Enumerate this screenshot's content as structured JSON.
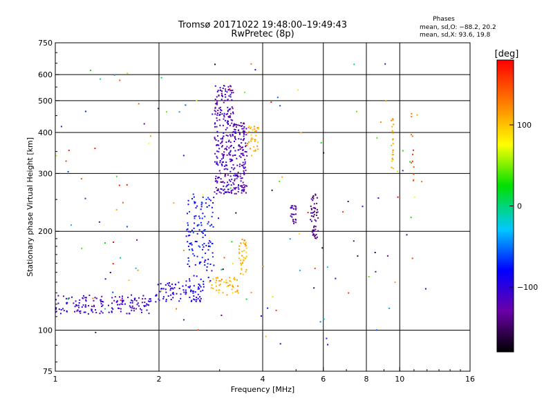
{
  "chart_data": {
    "type": "scatter",
    "title": "Tromsø 20171022 19:48:00–19:49:43",
    "subtitle": "RwPretec (8p)",
    "xlabel": "Frequency [MHz]",
    "ylabel": "Stationary phase Virtual Height [km]",
    "x_scale": "log",
    "y_scale": "log",
    "xlim": [
      1,
      16
    ],
    "ylim": [
      75,
      750
    ],
    "grid": true,
    "xticks": [
      1,
      2,
      4,
      6,
      8,
      10,
      16
    ],
    "yticks": [
      75,
      100,
      200,
      300,
      400,
      500,
      600,
      750
    ],
    "xtick_labels": [
      "1",
      "2",
      "4",
      "6",
      "8",
      "10",
      "16"
    ],
    "ytick_labels": [
      "75",
      "100",
      "200",
      "300",
      "400",
      "500",
      "600",
      "750"
    ],
    "stats_title": "Phases",
    "stats_o": "mean, sd,O: −88.2, 20.2",
    "stats_x": "mean, sd,X:  93.6, 19.8",
    "colorbar": {
      "label": "[deg]",
      "range": [
        -180,
        180
      ],
      "ticks": [
        -100,
        0,
        100
      ],
      "tick_labels": [
        "−100",
        "0",
        "100"
      ]
    },
    "clusters": [
      {
        "phase": -110,
        "x_range": [
          1.0,
          1.9
        ],
        "y_range": [
          112,
          128
        ],
        "count": 160
      },
      {
        "phase": -95,
        "x_range": [
          1.95,
          2.7
        ],
        "y_range": [
          122,
          140
        ],
        "count": 90
      },
      {
        "phase": -80,
        "x_range": [
          2.4,
          2.9
        ],
        "y_range": [
          140,
          260
        ],
        "count": 130
      },
      {
        "phase": -115,
        "x_range": [
          2.9,
          3.3
        ],
        "y_range": [
          260,
          560
        ],
        "count": 260
      },
      {
        "phase": -120,
        "x_range": [
          3.3,
          3.6
        ],
        "y_range": [
          260,
          430
        ],
        "count": 140
      },
      {
        "phase": 105,
        "x_range": [
          2.8,
          3.4
        ],
        "y_range": [
          128,
          145
        ],
        "count": 50
      },
      {
        "phase": 110,
        "x_range": [
          3.4,
          3.6
        ],
        "y_range": [
          145,
          190
        ],
        "count": 40
      },
      {
        "phase": 110,
        "x_range": [
          3.6,
          3.9
        ],
        "y_range": [
          350,
          420
        ],
        "count": 35
      },
      {
        "phase": -125,
        "x_range": [
          4.8,
          5.0
        ],
        "y_range": [
          210,
          240
        ],
        "count": 25
      },
      {
        "phase": -140,
        "x_range": [
          5.5,
          5.8
        ],
        "y_range": [
          190,
          260
        ],
        "count": 55
      },
      {
        "phase": 110,
        "x_range": [
          9.45,
          9.6
        ],
        "y_range": [
          300,
          450
        ],
        "count": 25
      },
      {
        "phase": 150,
        "x_range": [
          10.8,
          11.0
        ],
        "y_range": [
          280,
          470
        ],
        "count": 12
      },
      {
        "phase": 0,
        "x_range": [
          1.0,
          12.0
        ],
        "y_range": [
          90,
          650
        ],
        "count": 140
      }
    ]
  }
}
